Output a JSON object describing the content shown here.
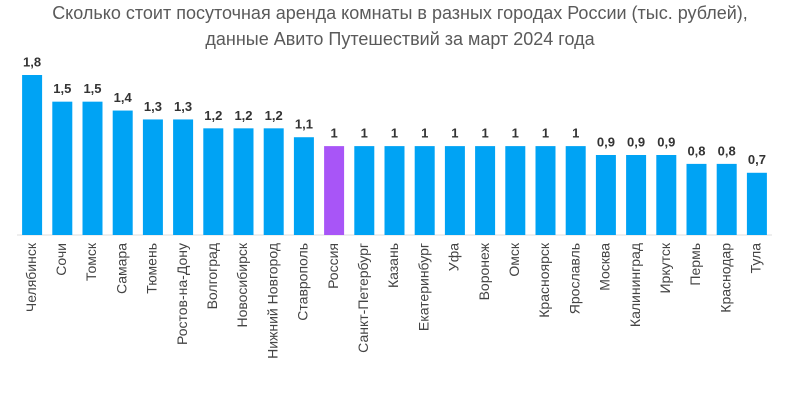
{
  "chart_data": {
    "type": "bar",
    "title": [
      "Сколько стоит посуточная аренда комнаты в разных городах России (тыс. рублей),",
      "данные Авито Путешествий за март 2024 года"
    ],
    "categories": [
      "Челябинск",
      "Сочи",
      "Томск",
      "Самара",
      "Тюмень",
      "Ростов-на-Дону",
      "Волгоград",
      "Новосибирск",
      "Нижний Новгород",
      "Ставрополь",
      "Россия",
      "Санкт-Петербург",
      "Казань",
      "Екатеринбург",
      "Уфа",
      "Воронеж",
      "Омск",
      "Красноярск",
      "Ярославль",
      "Москва",
      "Калининград",
      "Иркутск",
      "Пермь",
      "Краснодар",
      "Тула"
    ],
    "values": [
      1.8,
      1.5,
      1.5,
      1.4,
      1.3,
      1.3,
      1.2,
      1.2,
      1.2,
      1.1,
      1,
      1,
      1,
      1,
      1,
      1,
      1,
      1,
      1,
      0.9,
      0.9,
      0.9,
      0.8,
      0.8,
      0.7
    ],
    "value_labels": [
      "1,8",
      "1,5",
      "1,5",
      "1,4",
      "1,3",
      "1,3",
      "1,2",
      "1,2",
      "1,2",
      "1,1",
      "1",
      "1",
      "1",
      "1",
      "1",
      "1",
      "1",
      "1",
      "1",
      "0,9",
      "0,9",
      "0,9",
      "0,8",
      "0,8",
      "0,7"
    ],
    "colors": [
      "#00a3f4",
      "#00a3f4",
      "#00a3f4",
      "#00a3f4",
      "#00a3f4",
      "#00a3f4",
      "#00a3f4",
      "#00a3f4",
      "#00a3f4",
      "#00a3f4",
      "#a855f7",
      "#00a3f4",
      "#00a3f4",
      "#00a3f4",
      "#00a3f4",
      "#00a3f4",
      "#00a3f4",
      "#00a3f4",
      "#00a3f4",
      "#00a3f4",
      "#00a3f4",
      "#00a3f4",
      "#00a3f4",
      "#00a3f4",
      "#00a3f4"
    ]
  }
}
